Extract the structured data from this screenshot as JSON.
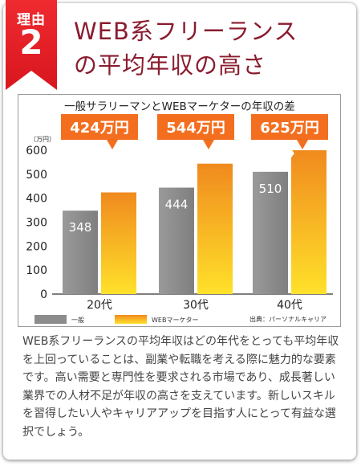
{
  "badge": {
    "label": "理由",
    "number": "2"
  },
  "title": {
    "line1": "WEB系フリーランス",
    "line2": "の平均年収の高さ"
  },
  "chart_data": {
    "type": "bar",
    "title": "一般サラリーマンとWEBマーケターの年収の差",
    "unit_label": "（万円）",
    "categories": [
      "20代",
      "30代",
      "40代"
    ],
    "series": [
      {
        "name": "一般",
        "values": [
          348,
          444,
          510
        ],
        "color": "#8c8c8c"
      },
      {
        "name": "WEBマーケター",
        "values": [
          424,
          544,
          625
        ],
        "color": "#f5a21f"
      }
    ],
    "callouts": [
      "424万円",
      "544万円",
      "625万円"
    ],
    "ylim": [
      0,
      600
    ],
    "yticks": [
      0,
      100,
      200,
      300,
      400,
      500,
      600
    ],
    "grid": false,
    "legend": "bottom-left",
    "source": "出典：パーソナルキャリア"
  },
  "colors": {
    "accent": "#e5212a",
    "title": "#8a1c2e",
    "callout": "#f36f1f"
  },
  "description": "WEB系フリーランスの平均年収はどの年代をとっても平均年収を上回っていることは、副業や転職を考える際に魅力的な要素です。高い需要と専門性を要求される市場であり、成長著しい業界での人材不足が年収の高さを支えています。新しいスキルを習得したい人やキャリアアップを目指す人にとって有益な選択でしょう。"
}
